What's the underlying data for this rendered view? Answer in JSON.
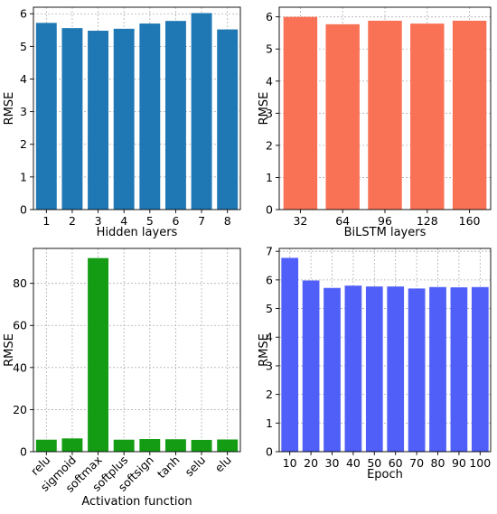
{
  "chart_data": [
    {
      "type": "bar",
      "xlabel": "Hidden layers",
      "ylabel": "RMSE",
      "categories": [
        "1",
        "2",
        "3",
        "4",
        "5",
        "6",
        "7",
        "8"
      ],
      "values": [
        5.72,
        5.56,
        5.48,
        5.54,
        5.7,
        5.78,
        6.02,
        5.52
      ],
      "ylim": [
        0,
        6.2
      ],
      "yticks": [
        0,
        1,
        2,
        3,
        4,
        5,
        6
      ],
      "color": "#1f77b4",
      "grid": true
    },
    {
      "type": "bar",
      "xlabel": "BiLSTM layers",
      "ylabel": "RMSE",
      "categories": [
        "32",
        "64",
        "96",
        "128",
        "160"
      ],
      "values": [
        6.0,
        5.77,
        5.88,
        5.79,
        5.88
      ],
      "ylim": [
        0,
        6.3
      ],
      "yticks": [
        0,
        1,
        2,
        3,
        4,
        5,
        6
      ],
      "color": "#fa7256",
      "grid": true
    },
    {
      "type": "bar",
      "xlabel": "Activation function",
      "ylabel": "RMSE",
      "categories": [
        "relu",
        "sigmoid",
        "softmax",
        "softplus",
        "softsign",
        "tanh",
        "selu",
        "elu"
      ],
      "values": [
        5.7,
        6.3,
        92.0,
        5.7,
        6.0,
        5.9,
        5.6,
        5.8
      ],
      "ylim": [
        0,
        96.6
      ],
      "yticks": [
        0,
        20,
        40,
        60,
        80
      ],
      "color": "#149c14",
      "grid": true,
      "rotate_ticks": true
    },
    {
      "type": "bar",
      "xlabel": "Epoch",
      "ylabel": "RMSE",
      "categories": [
        "10",
        "20",
        "30",
        "40",
        "50",
        "60",
        "70",
        "80",
        "90",
        "100"
      ],
      "values": [
        6.77,
        5.98,
        5.72,
        5.8,
        5.77,
        5.77,
        5.7,
        5.75,
        5.74,
        5.75
      ],
      "ylim": [
        0,
        7.1
      ],
      "yticks": [
        0,
        1,
        2,
        3,
        4,
        5,
        6,
        7
      ],
      "color": "#4f5ff7",
      "grid": true
    }
  ]
}
